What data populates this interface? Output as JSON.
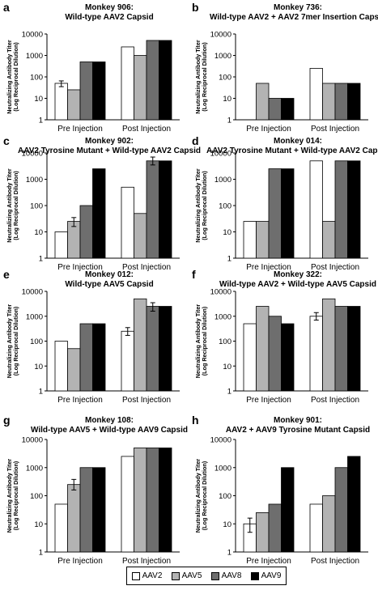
{
  "chart_data": [
    {
      "type": "bar",
      "panel_letter": "a",
      "title_line1": "Monkey 906:",
      "title_line2": "Wild-type AAV2 Capsid",
      "ylabel_line1": "Neutralizing Antibody Titer",
      "ylabel_line2": "(Log Reciprocal Dilution)",
      "yscale": "log",
      "ylim": [
        1,
        10000
      ],
      "yticks": [
        "1",
        "10",
        "100",
        "1000",
        "10000"
      ],
      "categories": [
        "Pre Injection",
        "Post Injection"
      ],
      "series": [
        {
          "name": "AAV2",
          "values": [
            50,
            2500
          ]
        },
        {
          "name": "AAV5",
          "values": [
            25,
            1000
          ]
        },
        {
          "name": "AAV8",
          "values": [
            500,
            5000
          ]
        },
        {
          "name": "AAV9",
          "values": [
            500,
            5000
          ]
        }
      ],
      "error_bars": [
        {
          "series": "AAV2",
          "category": "Pre Injection",
          "low": 35,
          "high": 65
        }
      ]
    },
    {
      "type": "bar",
      "panel_letter": "b",
      "title_line1": "Monkey 736:",
      "title_line2": "Wild-type AAV2 + AAV2 7mer Insertion Capsid",
      "ylabel_line1": "Neutralizing Antibody Titer",
      "ylabel_line2": "(Log Reciprocal Dilution)",
      "yscale": "log",
      "ylim": [
        1,
        10000
      ],
      "yticks": [
        "1",
        "10",
        "100",
        "1000",
        "10000"
      ],
      "categories": [
        "Pre Injection",
        "Post Injection"
      ],
      "series": [
        {
          "name": "AAV2",
          "values": [
            null,
            250
          ]
        },
        {
          "name": "AAV5",
          "values": [
            50,
            50
          ]
        },
        {
          "name": "AAV8",
          "values": [
            10,
            50
          ]
        },
        {
          "name": "AAV9",
          "values": [
            10,
            50
          ]
        }
      ],
      "error_bars": []
    },
    {
      "type": "bar",
      "panel_letter": "c",
      "title_line1": "Monkey 902:",
      "title_line2": "AAV2 Tyrosine Mutant + Wild-type AAV2 Capsid",
      "ylabel_line1": "Neutralizing Antibody Titer",
      "ylabel_line2": "(Log Reciprocal Dilution)",
      "yscale": "log",
      "ylim": [
        1,
        10000
      ],
      "yticks": [
        "1",
        "10",
        "100",
        "1000",
        "10000"
      ],
      "categories": [
        "Pre Injection",
        "Post Injection"
      ],
      "series": [
        {
          "name": "AAV2",
          "values": [
            10,
            500
          ]
        },
        {
          "name": "AAV5",
          "values": [
            25,
            50
          ]
        },
        {
          "name": "AAV8",
          "values": [
            100,
            5000
          ]
        },
        {
          "name": "AAV9",
          "values": [
            2500,
            5000
          ]
        }
      ],
      "error_bars": [
        {
          "series": "AAV5",
          "category": "Pre Injection",
          "low": 16,
          "high": 35
        },
        {
          "series": "AAV8",
          "category": "Post Injection",
          "low": 3500,
          "high": 7000
        }
      ]
    },
    {
      "type": "bar",
      "panel_letter": "d",
      "title_line1": "Monkey 014:",
      "title_line2": "AAV2 Tyrosine Mutant + Wild-type AAV2 Capsid",
      "ylabel_line1": "Neutralizing Antibody Titer",
      "ylabel_line2": "(Log Reciprocal Dilution)",
      "yscale": "log",
      "ylim": [
        1,
        10000
      ],
      "yticks": [
        "1",
        "10",
        "100",
        "1000",
        "10000"
      ],
      "categories": [
        "Pre Injection",
        "Post Injection"
      ],
      "series": [
        {
          "name": "AAV2",
          "values": [
            25,
            5000
          ]
        },
        {
          "name": "AAV5",
          "values": [
            25,
            25
          ]
        },
        {
          "name": "AAV8",
          "values": [
            2500,
            5000
          ]
        },
        {
          "name": "AAV9",
          "values": [
            2500,
            5000
          ]
        }
      ],
      "error_bars": []
    },
    {
      "type": "bar",
      "panel_letter": "e",
      "title_line1": "Monkey 012:",
      "title_line2": "Wild-type AAV5 Capsid",
      "ylabel_line1": "Neutralizing Antibody Titer",
      "ylabel_line2": "(Log Reciprocal Dilution)",
      "yscale": "log",
      "ylim": [
        1,
        10000
      ],
      "yticks": [
        "1",
        "10",
        "100",
        "1000",
        "10000"
      ],
      "categories": [
        "Pre Injection",
        "Post Injection"
      ],
      "series": [
        {
          "name": "AAV2",
          "values": [
            100,
            250
          ]
        },
        {
          "name": "AAV5",
          "values": [
            50,
            5000
          ]
        },
        {
          "name": "AAV8",
          "values": [
            500,
            2500
          ]
        },
        {
          "name": "AAV9",
          "values": [
            500,
            2500
          ]
        }
      ],
      "error_bars": [
        {
          "series": "AAV2",
          "category": "Post Injection",
          "low": 170,
          "high": 350
        },
        {
          "series": "AAV8",
          "category": "Post Injection",
          "low": 1600,
          "high": 3500
        }
      ]
    },
    {
      "type": "bar",
      "panel_letter": "f",
      "title_line1": "Monkey 322:",
      "title_line2": "Wild-type AAV2 + Wild-type AAV5 Capsid",
      "ylabel_line1": "Neutralizing Antibody Titer",
      "ylabel_line2": "(Log Reciprocal Dilution)",
      "yscale": "log",
      "ylim": [
        1,
        10000
      ],
      "yticks": [
        "1",
        "10",
        "100",
        "1000",
        "10000"
      ],
      "categories": [
        "Pre Injection",
        "Post Injection"
      ],
      "series": [
        {
          "name": "AAV2",
          "values": [
            500,
            1000
          ]
        },
        {
          "name": "AAV5",
          "values": [
            2500,
            5000
          ]
        },
        {
          "name": "AAV8",
          "values": [
            1000,
            2500
          ]
        },
        {
          "name": "AAV9",
          "values": [
            500,
            2500
          ]
        }
      ],
      "error_bars": [
        {
          "series": "AAV2",
          "category": "Post Injection",
          "low": 700,
          "high": 1400
        }
      ]
    },
    {
      "type": "bar",
      "panel_letter": "g",
      "title_line1": "Monkey 108:",
      "title_line2": "Wild-type AAV5 + Wild-type AAV9 Capsid",
      "ylabel_line1": "Neutralizing Antibody Titer",
      "ylabel_line2": "(Log Reciprocal Dilution)",
      "yscale": "log",
      "ylim": [
        1,
        10000
      ],
      "yticks": [
        "1",
        "10",
        "100",
        "1000",
        "10000"
      ],
      "categories": [
        "Pre Injection",
        "Post Injection"
      ],
      "series": [
        {
          "name": "AAV2",
          "values": [
            50,
            2500
          ]
        },
        {
          "name": "AAV5",
          "values": [
            250,
            5000
          ]
        },
        {
          "name": "AAV8",
          "values": [
            1000,
            5000
          ]
        },
        {
          "name": "AAV9",
          "values": [
            1000,
            5000
          ]
        }
      ],
      "error_bars": [
        {
          "series": "AAV5",
          "category": "Pre Injection",
          "low": 160,
          "high": 380
        }
      ]
    },
    {
      "type": "bar",
      "panel_letter": "h",
      "title_line1": "Monkey 901:",
      "title_line2": "AAV2 + AAV9 Tyrosine Mutant Capsid",
      "ylabel_line1": "Neutralizing Antibody Titer",
      "ylabel_line2": "(Log Reciprocal Dilution)",
      "yscale": "log",
      "ylim": [
        1,
        10000
      ],
      "yticks": [
        "1",
        "10",
        "100",
        "1000",
        "10000"
      ],
      "categories": [
        "Pre Injection",
        "Post Injection"
      ],
      "series": [
        {
          "name": "AAV2",
          "values": [
            10,
            50
          ]
        },
        {
          "name": "AAV5",
          "values": [
            25,
            100
          ]
        },
        {
          "name": "AAV8",
          "values": [
            50,
            1000
          ]
        },
        {
          "name": "AAV9",
          "values": [
            1000,
            2500
          ]
        }
      ],
      "error_bars": [
        {
          "series": "AAV2",
          "category": "Pre Injection",
          "low": 5,
          "high": 16
        }
      ]
    }
  ],
  "legend": {
    "entries": [
      {
        "label": "AAV2",
        "color": "#ffffff"
      },
      {
        "label": "AAV5",
        "color": "#b3b3b3"
      },
      {
        "label": "AAV8",
        "color": "#6e6e6e"
      },
      {
        "label": "AAV9",
        "color": "#000000"
      }
    ]
  },
  "series_colors": {
    "AAV2": "#ffffff",
    "AAV5": "#b3b3b3",
    "AAV8": "#6e6e6e",
    "AAV9": "#000000"
  }
}
